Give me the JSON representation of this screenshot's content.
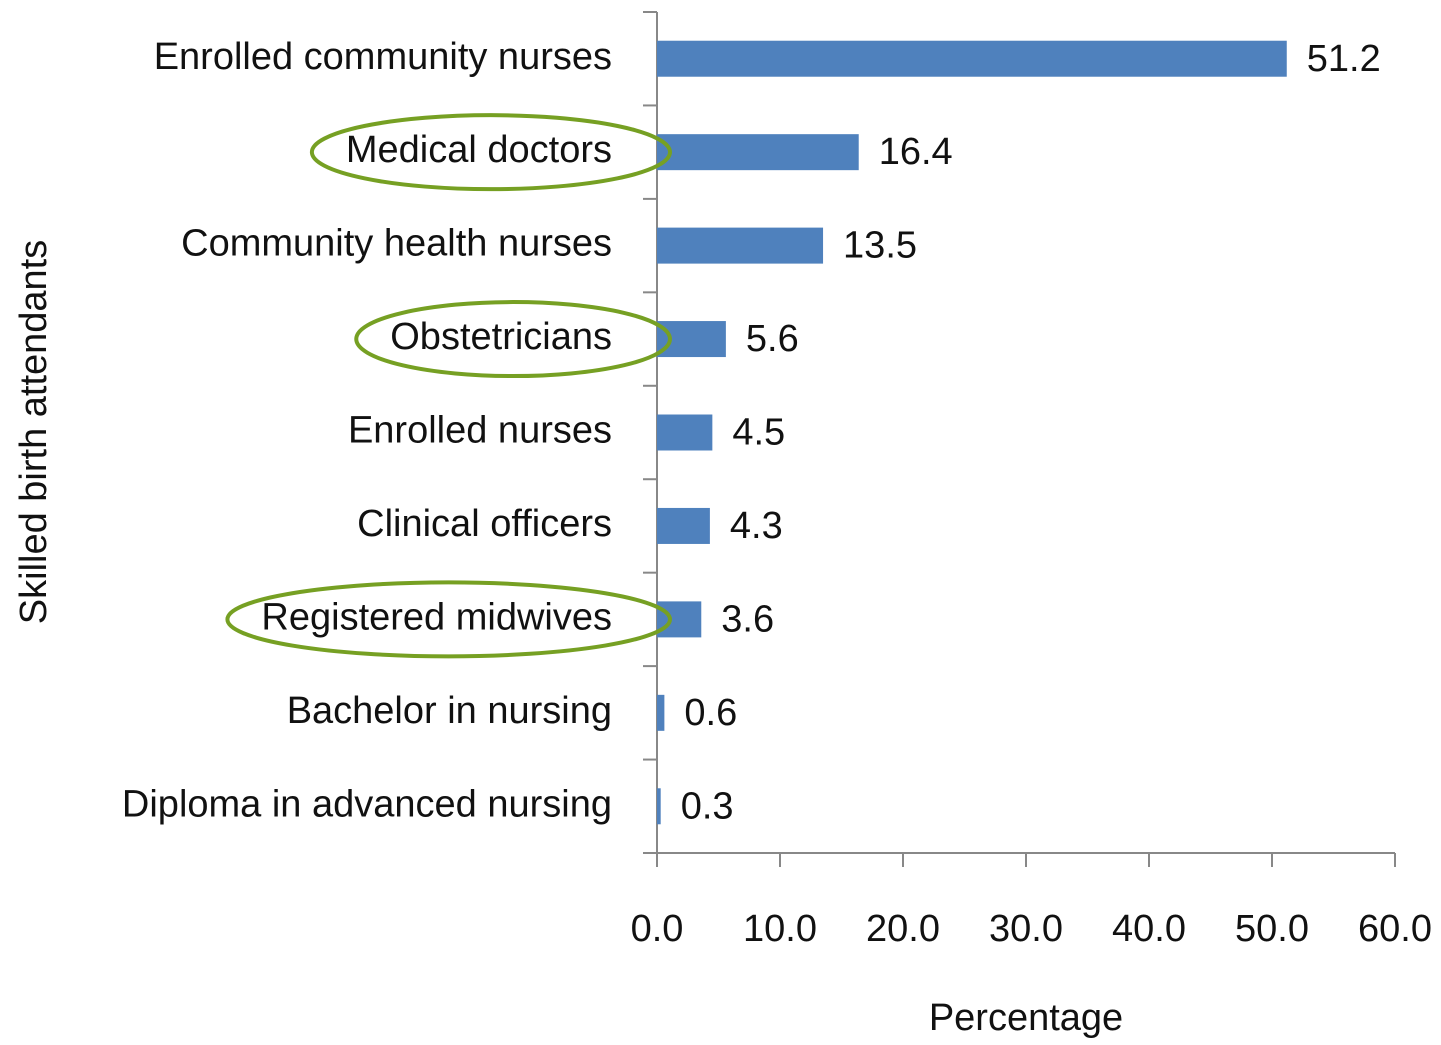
{
  "chart_data": {
    "type": "hbar",
    "x_label": "Percentage",
    "y_label": "Skilled birth attendants",
    "categories": [
      "Enrolled community nurses",
      "Medical doctors",
      "Community health nurses",
      "Obstetricians",
      "Enrolled nurses",
      "Clinical officers",
      "Registered midwives",
      "Bachelor in nursing",
      "Diploma in advanced nursing"
    ],
    "values": [
      51.2,
      16.4,
      13.5,
      5.6,
      4.5,
      4.3,
      3.6,
      0.6,
      0.3
    ],
    "color": "#4f81bd",
    "highlighted": [
      false,
      true,
      false,
      true,
      false,
      false,
      true,
      false,
      false
    ],
    "highlight_color": "#76a023",
    "xlim": [
      0,
      60
    ],
    "xticks": [
      {
        "value": 0,
        "label": "0.0"
      },
      {
        "value": 10,
        "label": "10.0"
      },
      {
        "value": 20,
        "label": "20.0"
      },
      {
        "value": 30,
        "label": "30.0"
      },
      {
        "value": 40,
        "label": "40.0"
      },
      {
        "value": 50,
        "label": "50.0"
      },
      {
        "value": 60,
        "label": "60.0"
      }
    ]
  }
}
